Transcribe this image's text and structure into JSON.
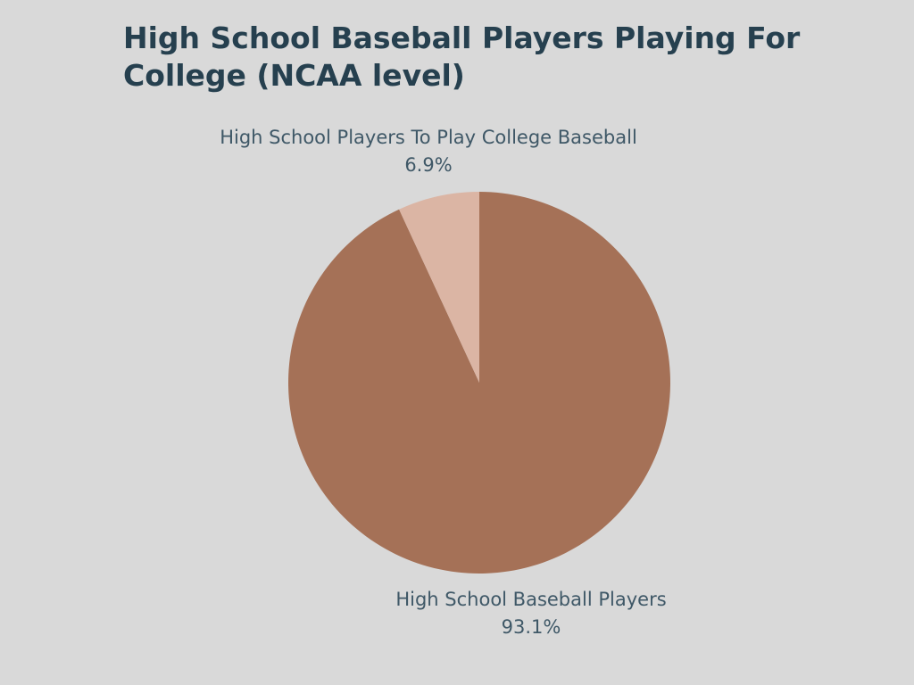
{
  "chart_data": {
    "type": "pie",
    "title": "High School Baseball Players Playing For College (NCAA level)",
    "slices": [
      {
        "label": "High School Baseball Players",
        "value": 93.1,
        "value_label": "93.1%",
        "color": "#a57157"
      },
      {
        "label": "High School Players To Play College Baseball",
        "value": 6.9,
        "value_label": "6.9%",
        "color": "#dbb5a4"
      }
    ]
  }
}
